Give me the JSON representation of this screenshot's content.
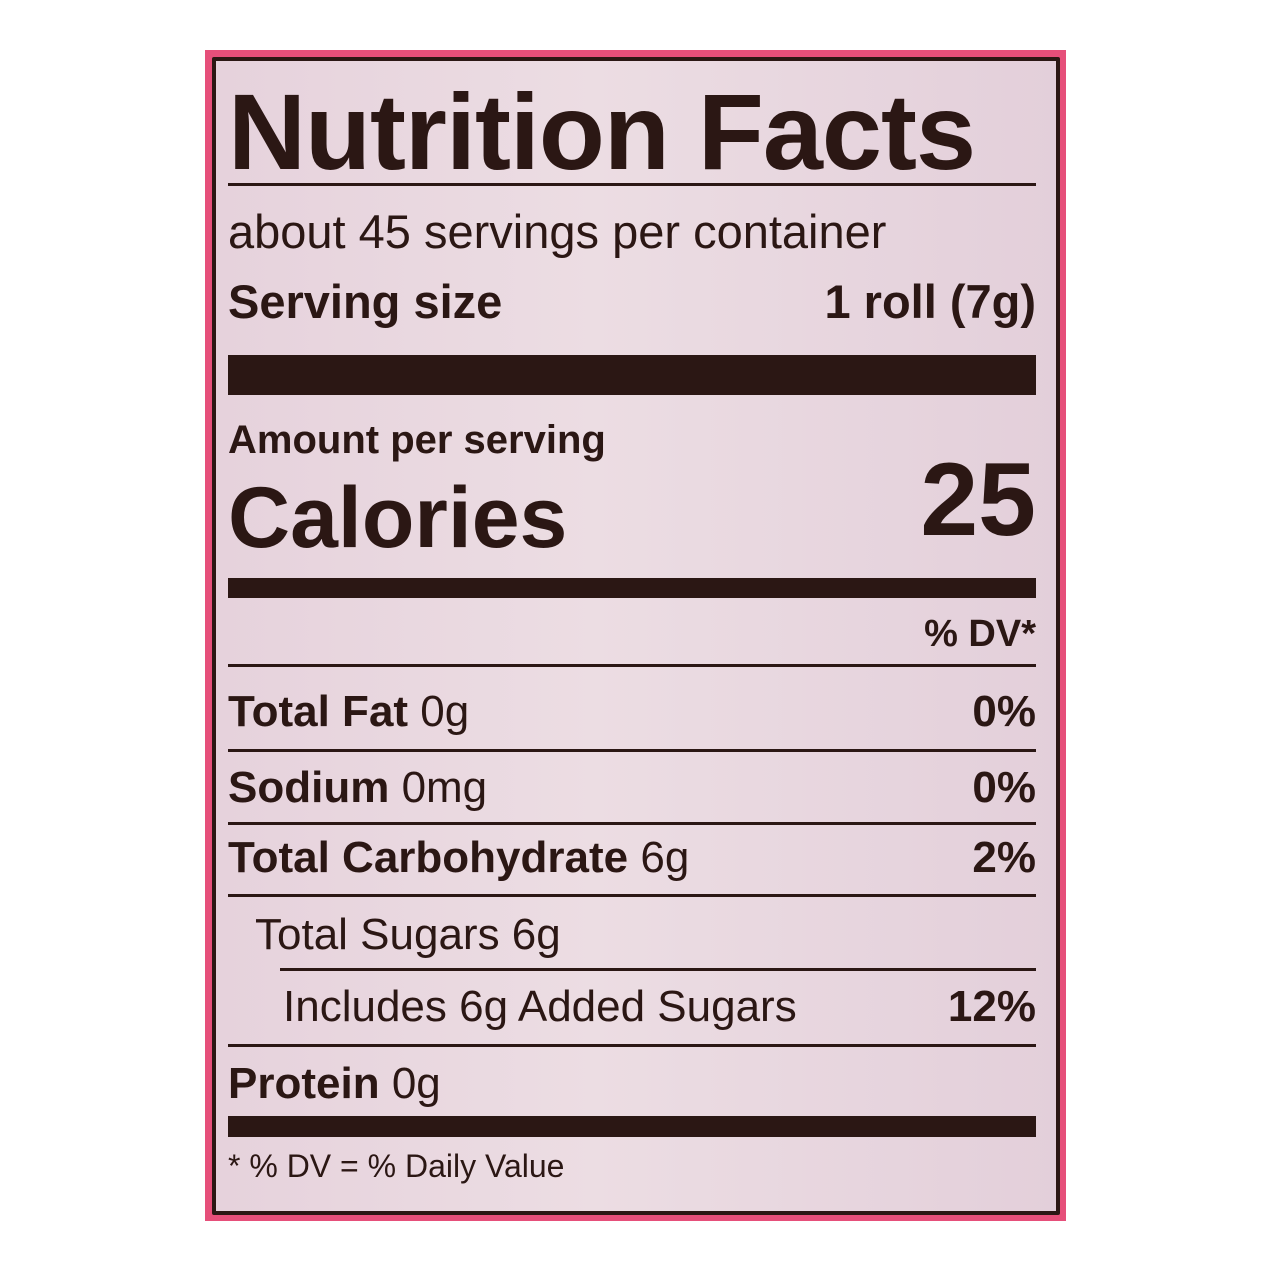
{
  "label": {
    "title": "Nutrition Facts",
    "servings_per_container": "about 45 servings per container",
    "serving_size_label": "Serving size",
    "serving_size_value": "1 roll (7g)",
    "amount_per_serving": "Amount per serving",
    "calories_label": "Calories",
    "calories_value": "25",
    "dv_header": "% DV*",
    "nutrients": [
      {
        "name": "Total Fat",
        "amount": "0g",
        "dv": "0%"
      },
      {
        "name": "Sodium",
        "amount": "0mg",
        "dv": "0%"
      },
      {
        "name": "Total Carbohydrate",
        "amount": "6g",
        "dv": "2%"
      },
      {
        "name": "Total Sugars 6g",
        "amount": "",
        "dv": ""
      },
      {
        "name": "Includes 6g Added Sugars",
        "amount": "",
        "dv": "12%"
      },
      {
        "name": "Protein",
        "amount": "0g",
        "dv": ""
      }
    ],
    "footnote": "* % DV = % Daily Value"
  },
  "colors": {
    "package_pink": "#e64f7a",
    "label_background": "#e8d6de",
    "ink": "#2b1714"
  }
}
